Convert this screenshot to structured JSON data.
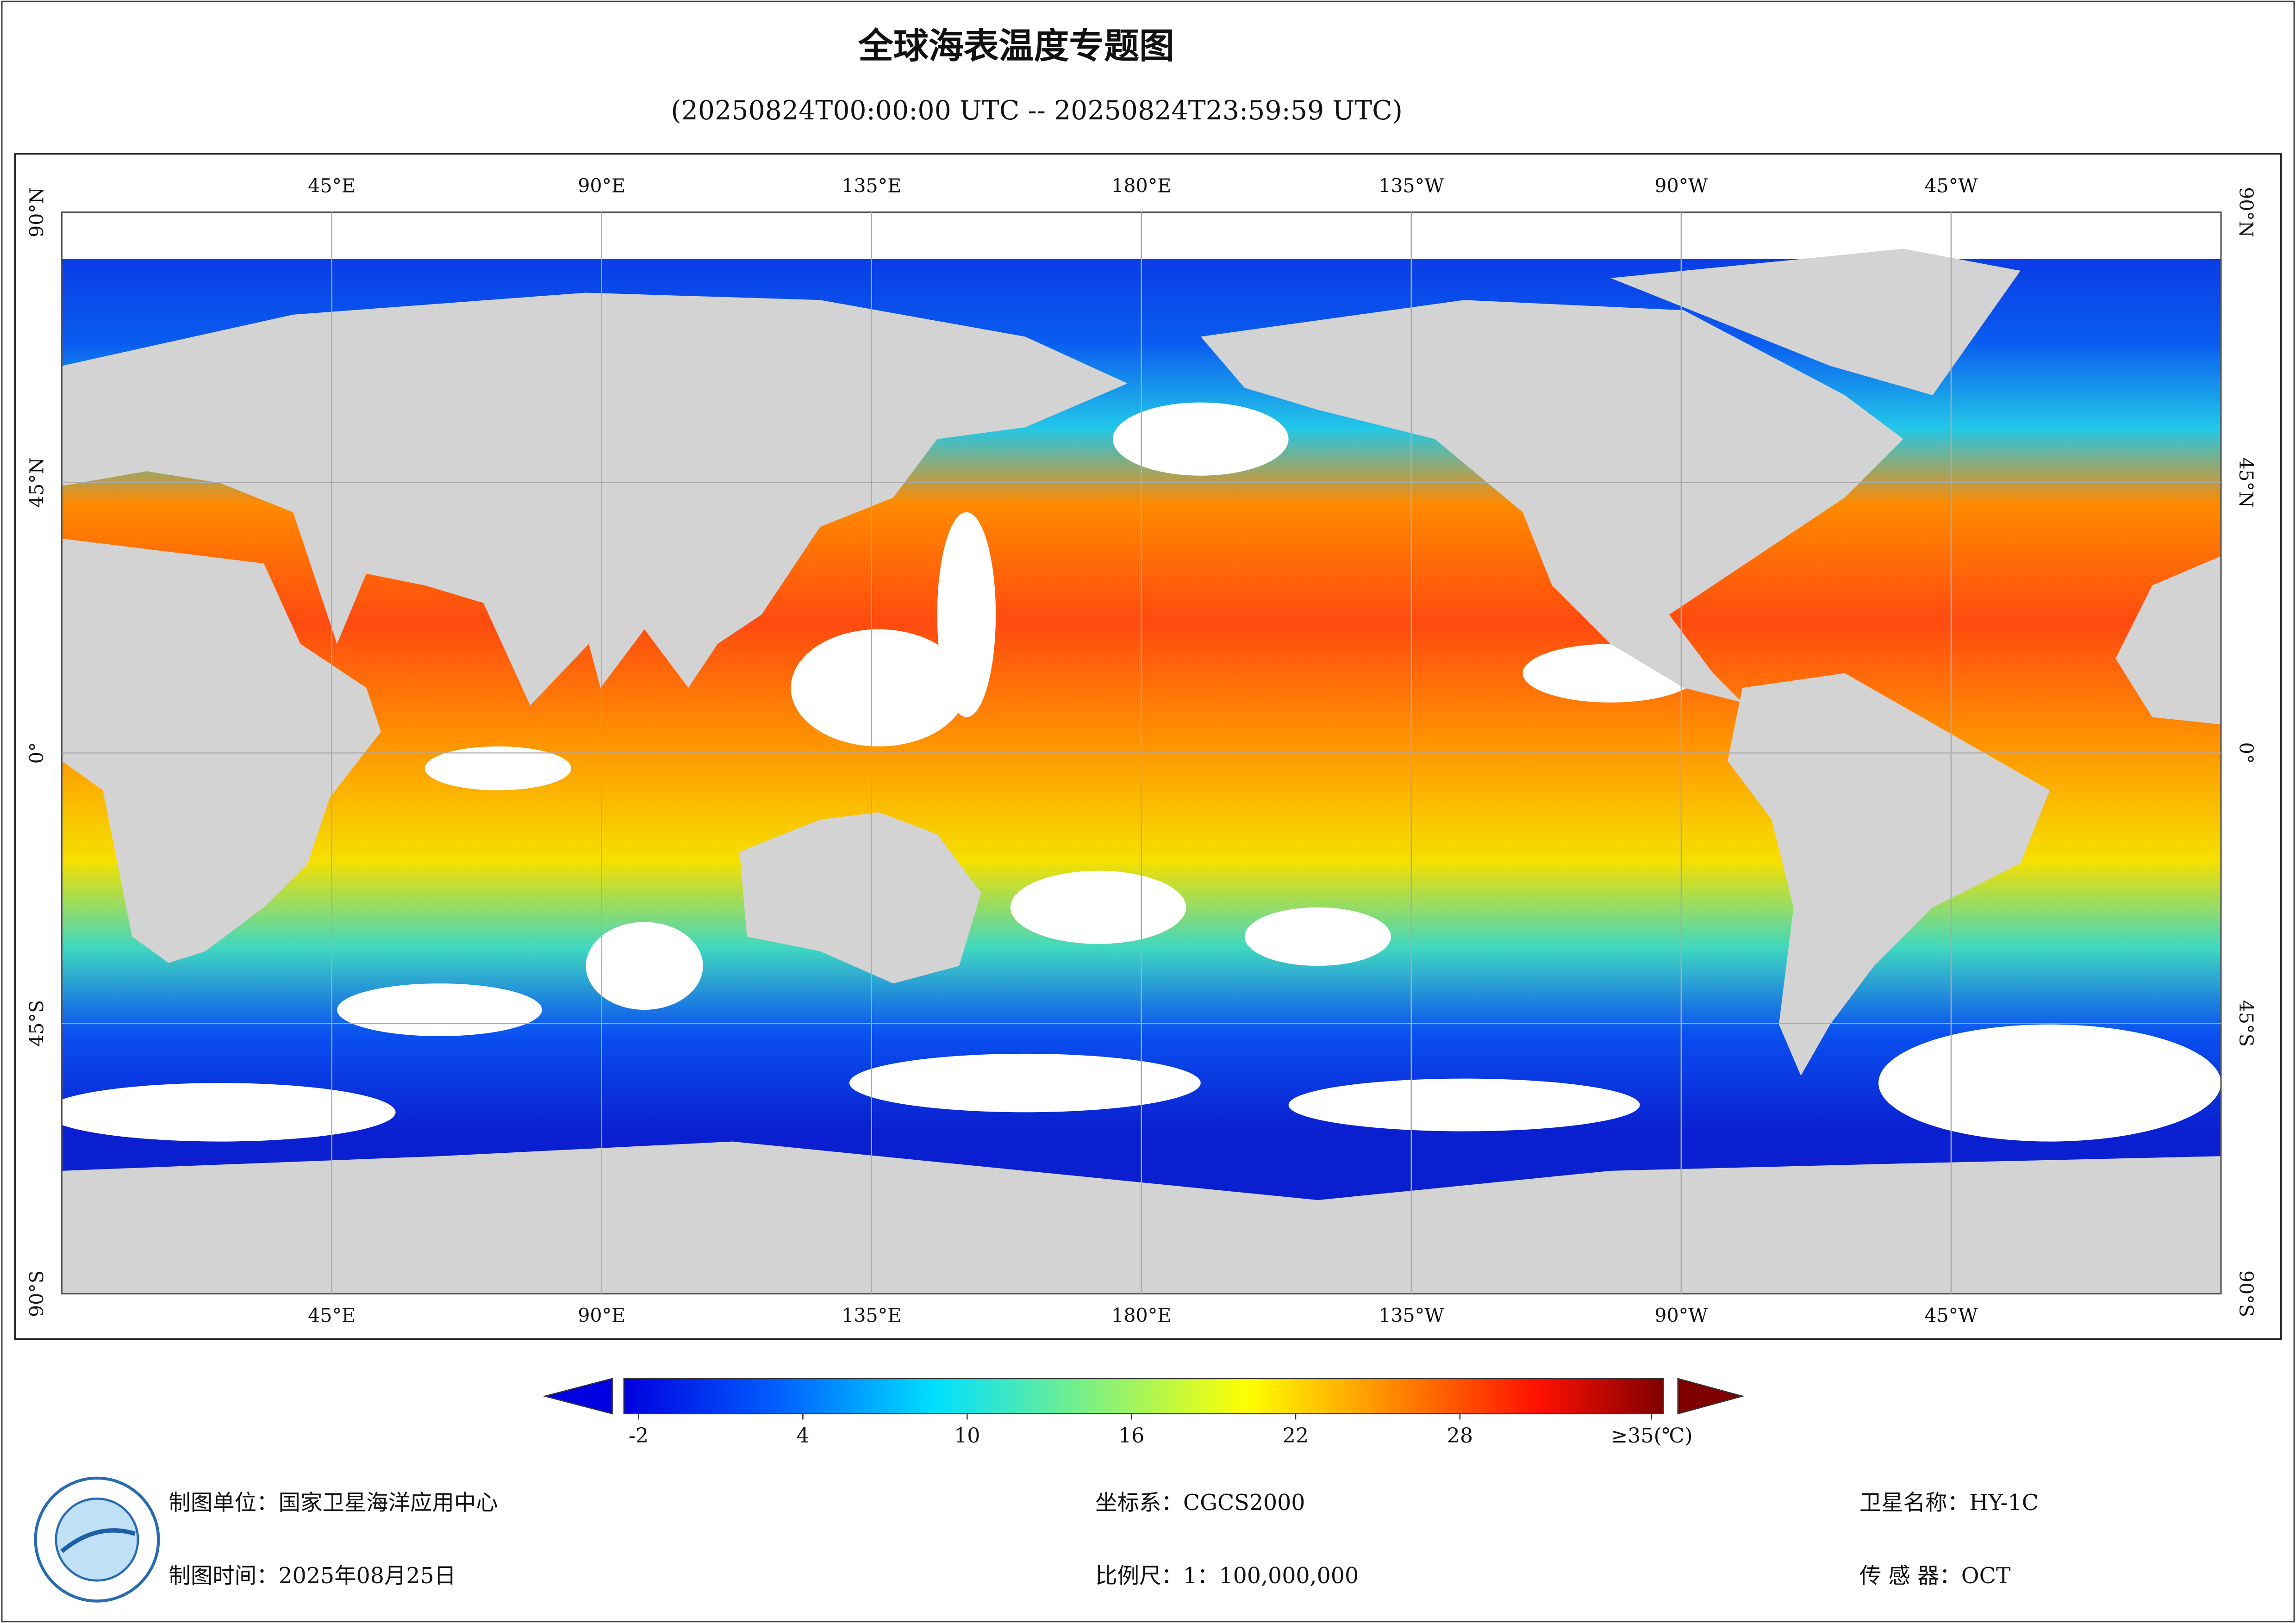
{
  "title": "全球海表温度专题图",
  "subtitle": "(20250824T00:00:00 UTC -- 20250824T23:59:59 UTC)",
  "map": {
    "lon_labels": [
      "45°E",
      "90°E",
      "135°E",
      "180°E",
      "135°W",
      "90°W",
      "45°W"
    ],
    "lat_labels": [
      "90°N",
      "45°N",
      "0°",
      "45°S",
      "90°S"
    ]
  },
  "colorbar": {
    "range": [
      -2,
      35
    ],
    "ticks": [
      -2,
      4,
      10,
      16,
      22,
      28,
      {
        "value": 35,
        "label": "≥35(℃)"
      }
    ]
  },
  "footer": {
    "unit": "制图单位：国家卫星海洋应用中心",
    "date": "制图时间：2025年08月25日",
    "crs": "坐标系：CGCS2000",
    "scale": "比例尺：1：100,000,000",
    "satellite": "卫星名称：HY-1C",
    "sensor": "传 感 器：OCT"
  }
}
